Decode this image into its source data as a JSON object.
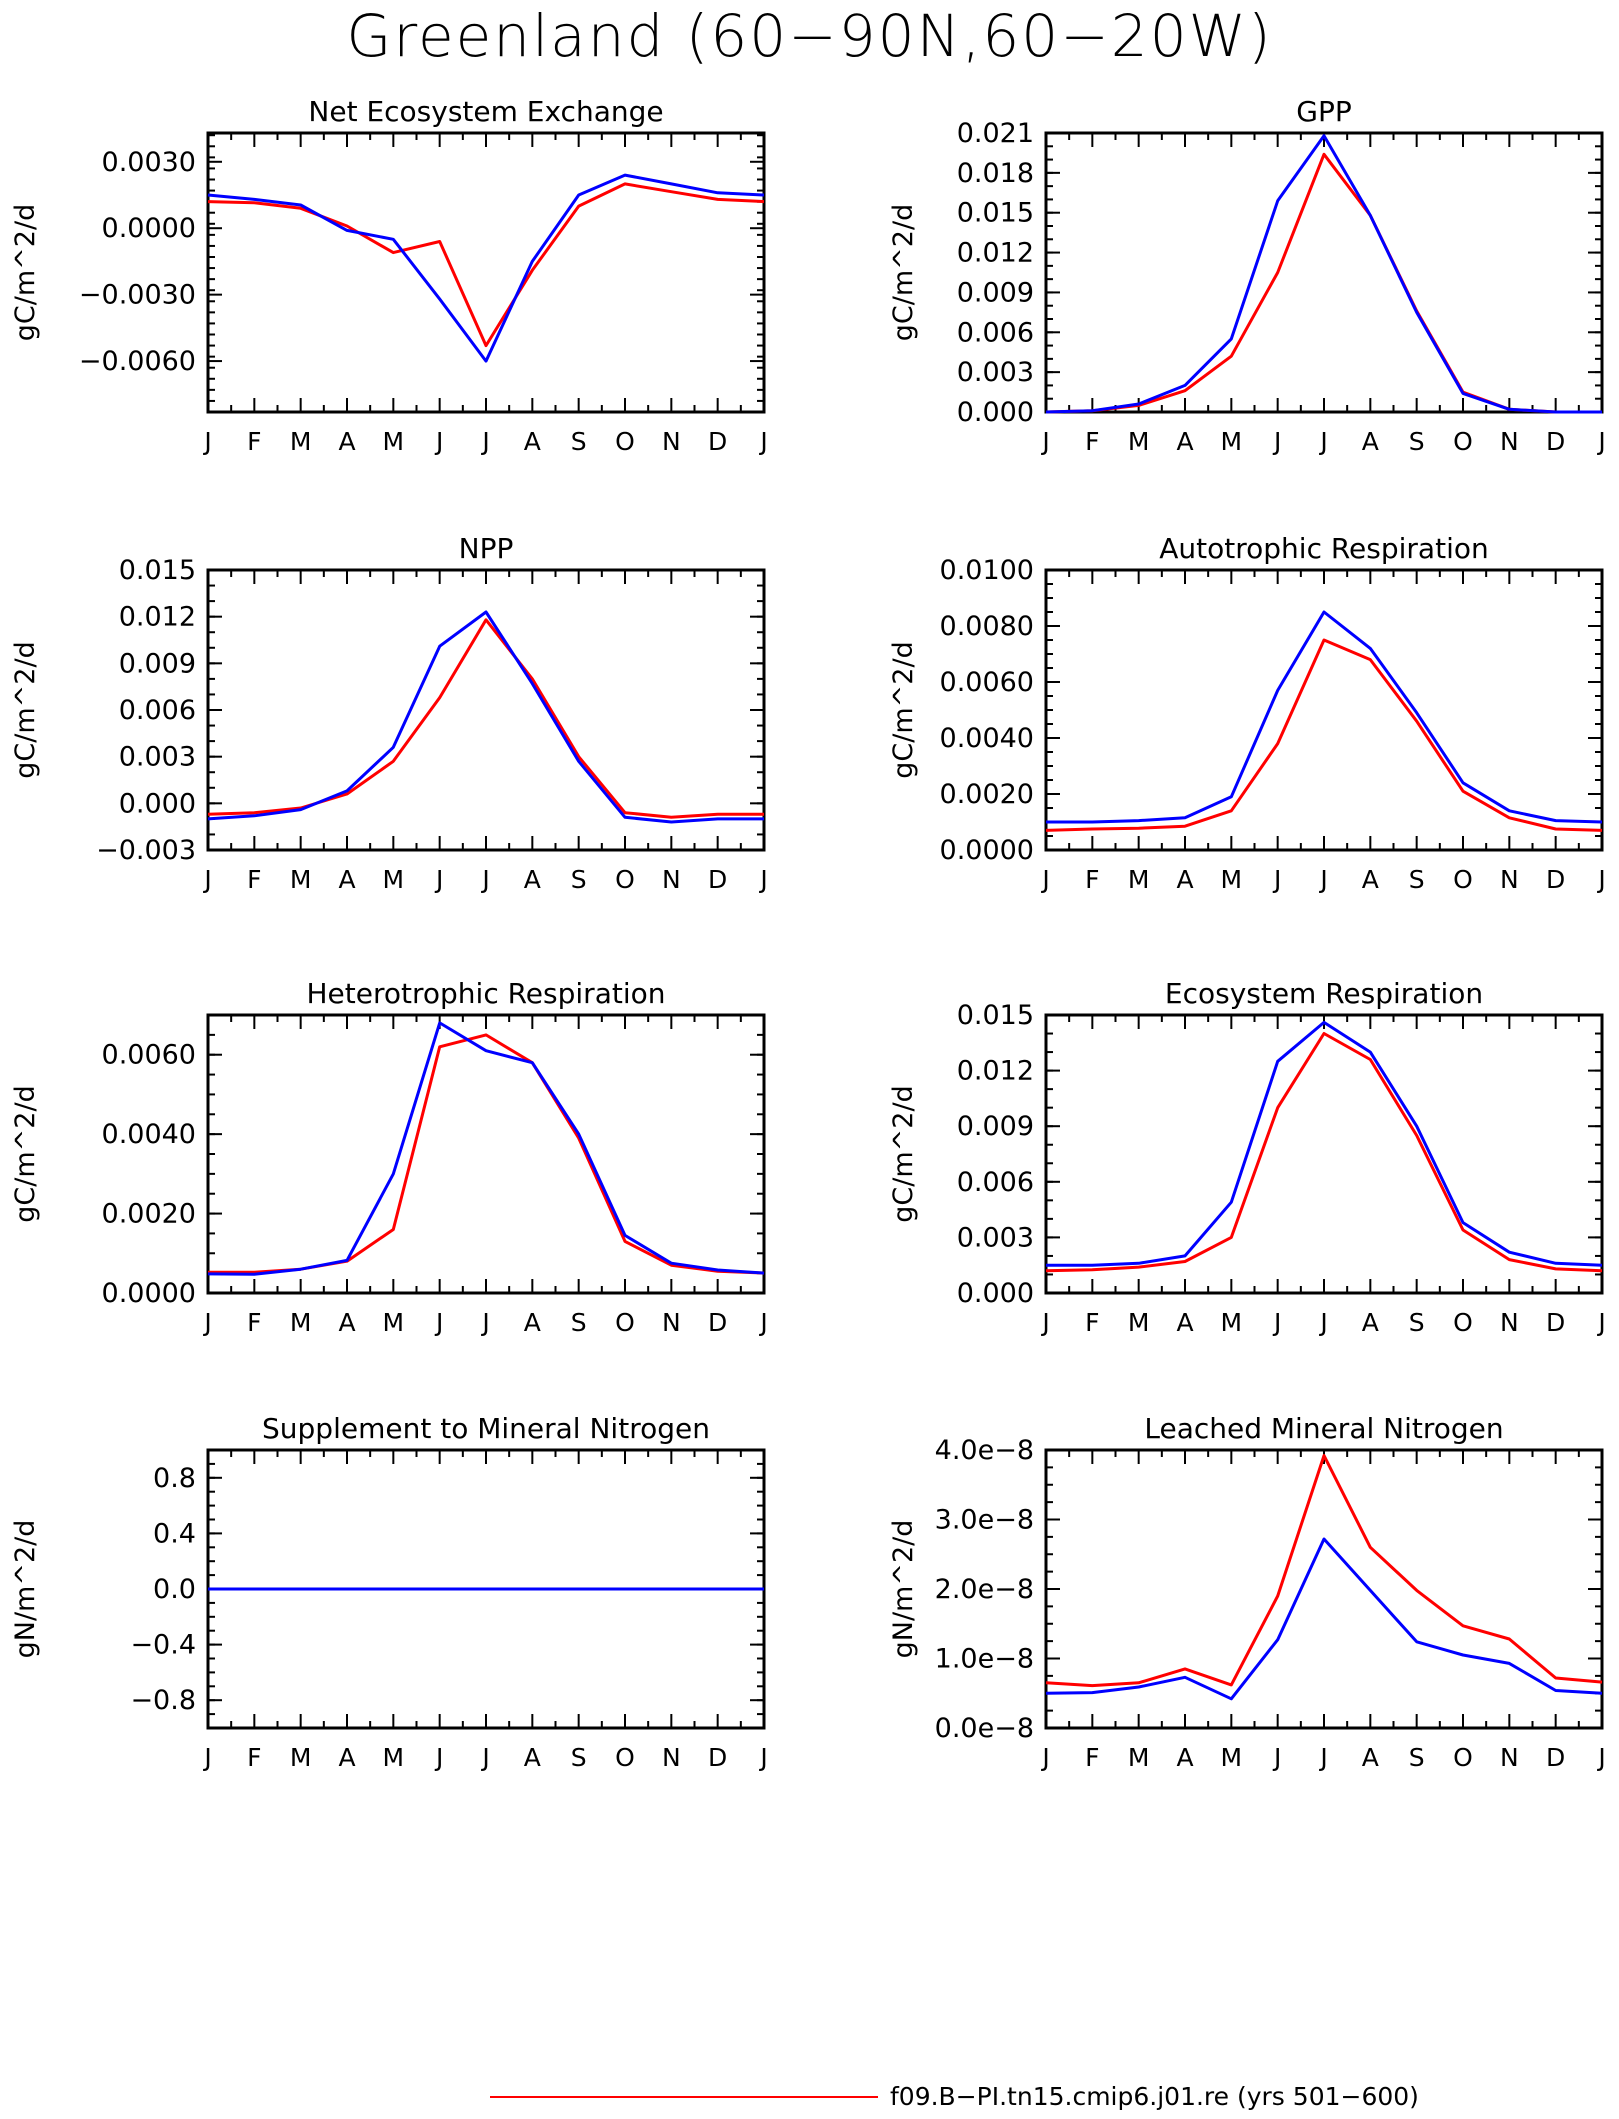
{
  "title": "Greenland (60−90N,60−20W)",
  "colors": {
    "series1": "#ff0000",
    "series2": "#0000ff"
  },
  "legend": [
    {
      "label": "f09.B−PI.tn15.cmip6.j01.re (yrs 501−600)",
      "color": "#ff0000"
    }
  ],
  "chart_data": [
    {
      "type": "line",
      "title": "Net Ecosystem Exchange",
      "ylabel": "gC/m^2/d",
      "categories": [
        "J",
        "F",
        "M",
        "A",
        "M",
        "J",
        "J",
        "A",
        "S",
        "O",
        "N",
        "D",
        "J"
      ],
      "ylim": [
        -0.0083,
        0.0043
      ],
      "yticks": [
        0.003,
        0.0,
        -0.003,
        -0.006
      ],
      "yticklabels": [
        "0.0030",
        "0.0000",
        "−0.0030",
        "−0.0060"
      ],
      "yminor": 0.0005,
      "series": [
        {
          "color": "#ff0000",
          "values": [
            0.0012,
            0.00115,
            0.0009,
            0.0001,
            -0.0011,
            -0.0006,
            -0.0053,
            -0.0019,
            0.001,
            0.002,
            0.00165,
            0.0013,
            0.0012
          ]
        },
        {
          "color": "#0000ff",
          "values": [
            0.0015,
            0.0013,
            0.00105,
            -0.0001,
            -0.0005,
            -0.0032,
            -0.006,
            -0.0015,
            0.0015,
            0.0024,
            0.002,
            0.0016,
            0.0015
          ]
        }
      ]
    },
    {
      "type": "line",
      "title": "GPP",
      "ylabel": "gC/m^2/d",
      "categories": [
        "J",
        "F",
        "M",
        "A",
        "M",
        "J",
        "J",
        "A",
        "S",
        "O",
        "N",
        "D",
        "J"
      ],
      "ylim": [
        0,
        0.021
      ],
      "yticks": [
        0.0,
        0.003,
        0.006,
        0.009,
        0.012,
        0.015,
        0.018,
        0.021
      ],
      "yticklabels": [
        "0.000",
        "0.003",
        "0.006",
        "0.009",
        "0.012",
        "0.015",
        "0.018",
        "0.021"
      ],
      "yminor": 0.001,
      "series": [
        {
          "color": "#ff0000",
          "values": [
            0.0,
            0.0001,
            0.0005,
            0.0016,
            0.0042,
            0.0105,
            0.0194,
            0.0148,
            0.0076,
            0.0015,
            0.0002,
            0.0,
            0.0
          ]
        },
        {
          "color": "#0000ff",
          "values": [
            0.0,
            0.0001,
            0.0006,
            0.002,
            0.0055,
            0.0159,
            0.0208,
            0.0148,
            0.0075,
            0.0014,
            0.0002,
            0.0,
            0.0
          ]
        }
      ]
    },
    {
      "type": "line",
      "title": "NPP",
      "ylabel": "gC/m^2/d",
      "categories": [
        "J",
        "F",
        "M",
        "A",
        "M",
        "J",
        "J",
        "A",
        "S",
        "O",
        "N",
        "D",
        "J"
      ],
      "ylim": [
        -0.003,
        0.015
      ],
      "yticks": [
        -0.003,
        0.0,
        0.003,
        0.006,
        0.009,
        0.012,
        0.015
      ],
      "yticklabels": [
        "−0.003",
        "0.000",
        "0.003",
        "0.006",
        "0.009",
        "0.012",
        "0.015"
      ],
      "yminor": 0.001,
      "series": [
        {
          "color": "#ff0000",
          "values": [
            -0.0007,
            -0.0006,
            -0.0003,
            0.0006,
            0.0027,
            0.0068,
            0.0118,
            0.008,
            0.003,
            -0.0006,
            -0.0009,
            -0.0007,
            -0.0007
          ]
        },
        {
          "color": "#0000ff",
          "values": [
            -0.001,
            -0.0008,
            -0.0004,
            0.0008,
            0.0036,
            0.0101,
            0.0123,
            0.0077,
            0.0027,
            -0.0009,
            -0.0012,
            -0.001,
            -0.001
          ]
        }
      ]
    },
    {
      "type": "line",
      "title": "Autotrophic Respiration",
      "ylabel": "gC/m^2/d",
      "categories": [
        "J",
        "F",
        "M",
        "A",
        "M",
        "J",
        "J",
        "A",
        "S",
        "O",
        "N",
        "D",
        "J"
      ],
      "ylim": [
        0,
        0.01
      ],
      "yticks": [
        0.0,
        0.002,
        0.004,
        0.006,
        0.008,
        0.01
      ],
      "yticklabels": [
        "0.0000",
        "0.0020",
        "0.0040",
        "0.0060",
        "0.0080",
        "0.0100"
      ],
      "yminor": 0.0005,
      "series": [
        {
          "color": "#ff0000",
          "values": [
            0.0007,
            0.00075,
            0.00078,
            0.00085,
            0.0014,
            0.0038,
            0.0075,
            0.0068,
            0.0046,
            0.0021,
            0.00115,
            0.00075,
            0.0007
          ]
        },
        {
          "color": "#0000ff",
          "values": [
            0.001,
            0.001,
            0.00105,
            0.00115,
            0.0019,
            0.0057,
            0.0085,
            0.0072,
            0.0049,
            0.0024,
            0.0014,
            0.00105,
            0.001
          ]
        }
      ]
    },
    {
      "type": "line",
      "title": "Heterotrophic Respiration",
      "ylabel": "gC/m^2/d",
      "categories": [
        "J",
        "F",
        "M",
        "A",
        "M",
        "J",
        "J",
        "A",
        "S",
        "O",
        "N",
        "D",
        "J"
      ],
      "ylim": [
        0,
        0.007
      ],
      "yticks": [
        0.0,
        0.002,
        0.004,
        0.006
      ],
      "yticklabels": [
        "0.0000",
        "0.0020",
        "0.0040",
        "0.0060"
      ],
      "yminor": 0.0005,
      "series": [
        {
          "color": "#ff0000",
          "values": [
            0.00052,
            0.00052,
            0.0006,
            0.0008,
            0.0016,
            0.0062,
            0.0065,
            0.0058,
            0.0039,
            0.0013,
            0.0007,
            0.00055,
            0.0005
          ]
        },
        {
          "color": "#0000ff",
          "values": [
            0.00048,
            0.00047,
            0.0006,
            0.00082,
            0.003,
            0.0068,
            0.0061,
            0.0058,
            0.004,
            0.00145,
            0.00075,
            0.00058,
            0.0005
          ]
        }
      ]
    },
    {
      "type": "line",
      "title": "Ecosystem Respiration",
      "ylabel": "gC/m^2/d",
      "categories": [
        "J",
        "F",
        "M",
        "A",
        "M",
        "J",
        "J",
        "A",
        "S",
        "O",
        "N",
        "D",
        "J"
      ],
      "ylim": [
        0,
        0.015
      ],
      "yticks": [
        0.0,
        0.003,
        0.006,
        0.009,
        0.012,
        0.015
      ],
      "yticklabels": [
        "0.000",
        "0.003",
        "0.006",
        "0.009",
        "0.012",
        "0.015"
      ],
      "yminor": 0.001,
      "series": [
        {
          "color": "#ff0000",
          "values": [
            0.0012,
            0.00125,
            0.0014,
            0.0017,
            0.003,
            0.01,
            0.014,
            0.0126,
            0.0085,
            0.0034,
            0.0018,
            0.0013,
            0.0012
          ]
        },
        {
          "color": "#0000ff",
          "values": [
            0.0015,
            0.0015,
            0.0016,
            0.002,
            0.0049,
            0.0125,
            0.0146,
            0.013,
            0.009,
            0.0038,
            0.0022,
            0.0016,
            0.0015
          ]
        }
      ]
    },
    {
      "type": "line",
      "title": "Supplement to Mineral Nitrogen",
      "ylabel": "gN/m^2/d",
      "categories": [
        "J",
        "F",
        "M",
        "A",
        "M",
        "J",
        "J",
        "A",
        "S",
        "O",
        "N",
        "D",
        "J"
      ],
      "ylim": [
        -1.0,
        1.0
      ],
      "yticks": [
        0.8,
        0.4,
        0.0,
        -0.4,
        -0.8
      ],
      "yticklabels": [
        "0.8",
        "0.4",
        "0.0",
        "−0.4",
        "−0.8"
      ],
      "yminor": 0.1,
      "series": [
        {
          "color": "#ff0000",
          "values": [
            0,
            0,
            0,
            0,
            0,
            0,
            0,
            0,
            0,
            0,
            0,
            0,
            0
          ]
        },
        {
          "color": "#0000ff",
          "values": [
            0,
            0,
            0,
            0,
            0,
            0,
            0,
            0,
            0,
            0,
            0,
            0,
            0
          ]
        }
      ]
    },
    {
      "type": "line",
      "title": "Leached Mineral Nitrogen",
      "ylabel": "gN/m^2/d",
      "categories": [
        "J",
        "F",
        "M",
        "A",
        "M",
        "J",
        "J",
        "A",
        "S",
        "O",
        "N",
        "D",
        "J"
      ],
      "ylim": [
        0,
        4e-08
      ],
      "yticks": [
        0,
        1e-08,
        2e-08,
        3e-08,
        4e-08
      ],
      "yticklabels": [
        "0.0e−8",
        "1.0e−8",
        "2.0e−8",
        "3.0e−8",
        "4.0e−8"
      ],
      "yminor": 2.5e-09,
      "series": [
        {
          "color": "#ff0000",
          "values": [
            6.5e-09,
            6.1e-09,
            6.5e-09,
            8.5e-09,
            6.2e-09,
            1.9e-08,
            3.92e-08,
            2.6e-08,
            1.98e-08,
            1.47e-08,
            1.28e-08,
            7.2e-09,
            6.6e-09
          ]
        },
        {
          "color": "#0000ff",
          "values": [
            5e-09,
            5.1e-09,
            5.9e-09,
            7.3e-09,
            4.2e-09,
            1.27e-08,
            2.72e-08,
            1.98e-08,
            1.24e-08,
            1.05e-08,
            9.3e-09,
            5.4e-09,
            5e-09
          ]
        }
      ]
    }
  ]
}
